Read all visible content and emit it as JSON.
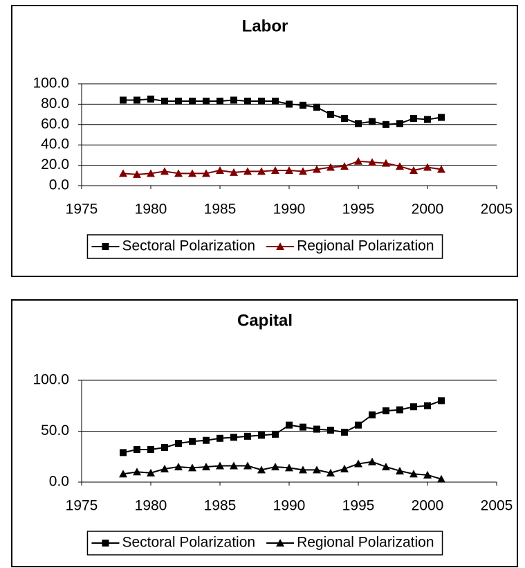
{
  "chart_data": [
    {
      "type": "line",
      "title": "Labor",
      "x": [
        1978,
        1979,
        1980,
        1981,
        1982,
        1983,
        1984,
        1985,
        1986,
        1987,
        1988,
        1989,
        1990,
        1991,
        1992,
        1993,
        1994,
        1995,
        1996,
        1997,
        1998,
        1999,
        2000,
        2001
      ],
      "series": [
        {
          "name": "Sectoral Polarization",
          "color": "#000000",
          "marker": "square",
          "values": [
            84,
            84,
            85,
            83,
            83,
            83,
            83,
            83,
            84,
            83,
            83,
            83,
            80,
            79,
            77,
            70,
            66,
            61,
            63,
            60,
            61,
            66,
            65,
            67
          ]
        },
        {
          "name": "Regional Polarization",
          "color": "#800000",
          "marker": "triangle",
          "values": [
            12,
            11,
            12,
            14,
            12,
            12,
            12,
            15,
            13,
            14,
            14,
            15,
            15,
            14,
            16,
            18,
            19,
            24,
            23,
            22,
            19,
            15,
            18,
            16
          ]
        }
      ],
      "xlim": [
        1975,
        2005
      ],
      "xticks": [
        1975,
        1980,
        1985,
        1990,
        1995,
        2000,
        2005
      ],
      "ylim": [
        0,
        100
      ],
      "yticks": [
        {
          "value": 0,
          "label": "0.0"
        },
        {
          "value": 20,
          "label": "20.0"
        },
        {
          "value": 40,
          "label": "40.0"
        },
        {
          "value": 60,
          "label": "60.0"
        },
        {
          "value": 80,
          "label": "80.0"
        },
        {
          "value": 100,
          "label": "100.0"
        }
      ],
      "grid": true,
      "legend": "bottom"
    },
    {
      "type": "line",
      "title": "Capital",
      "x": [
        1978,
        1979,
        1980,
        1981,
        1982,
        1983,
        1984,
        1985,
        1986,
        1987,
        1988,
        1989,
        1990,
        1991,
        1992,
        1993,
        1994,
        1995,
        1996,
        1997,
        1998,
        1999,
        2000,
        2001
      ],
      "series": [
        {
          "name": "Sectoral Polarization",
          "color": "#000000",
          "marker": "square",
          "values": [
            29,
            32,
            32,
            34,
            38,
            40,
            41,
            43,
            44,
            45,
            46,
            47,
            56,
            54,
            52,
            51,
            49,
            56,
            66,
            70,
            71,
            74,
            75,
            80
          ]
        },
        {
          "name": "Regional Polarization",
          "color": "#000000",
          "marker": "triangle",
          "values": [
            8,
            10,
            9,
            13,
            15,
            14,
            15,
            16,
            16,
            16,
            12,
            15,
            14,
            12,
            12,
            9,
            13,
            18,
            20,
            15,
            11,
            8,
            7,
            3
          ]
        }
      ],
      "xlim": [
        1975,
        2005
      ],
      "xticks": [
        1975,
        1980,
        1985,
        1990,
        1995,
        2000,
        2005
      ],
      "ylim": [
        0,
        100
      ],
      "yticks": [
        {
          "value": 0,
          "label": "0.0"
        },
        {
          "value": 50,
          "label": "50.0"
        },
        {
          "value": 100,
          "label": "100.0"
        }
      ],
      "grid": true,
      "legend": "bottom"
    }
  ]
}
